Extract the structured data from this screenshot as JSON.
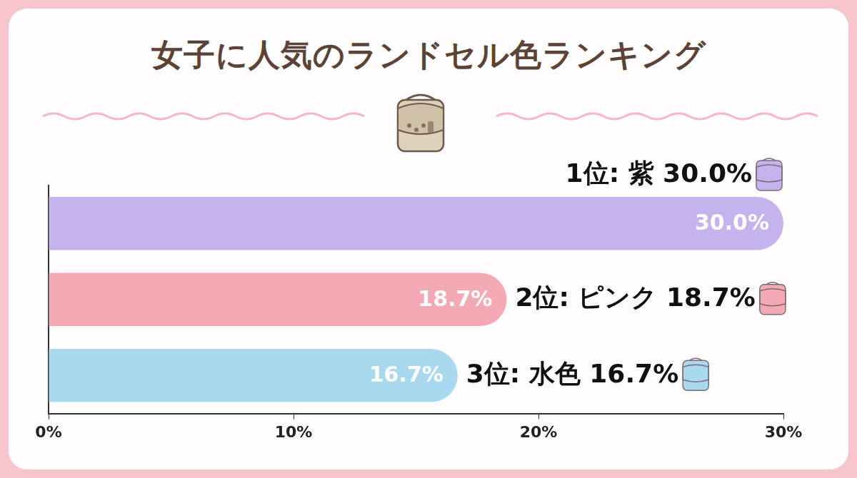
{
  "chart_data": {
    "type": "bar",
    "title": "女子に人気のランドセル色ランキング",
    "orientation": "horizontal",
    "categories": [
      "1位: 紫 30.0%",
      "2位: ピンク 18.7%",
      "3位: 水色 16.7%"
    ],
    "values": [
      30.0,
      18.7,
      16.7
    ],
    "value_labels": [
      "30.0%",
      "18.7%",
      "16.7%"
    ],
    "colors": [
      "#c5b3ee",
      "#f4aab4",
      "#a9d9ef"
    ],
    "xlim": [
      0,
      30
    ],
    "xticks": [
      {
        "value": 0,
        "label": "0%"
      },
      {
        "value": 10,
        "label": "10%"
      },
      {
        "value": 20,
        "label": "20%"
      },
      {
        "value": 30,
        "label": "30%"
      }
    ],
    "data_labels": true,
    "tick_labels": "x",
    "grid": false
  }
}
